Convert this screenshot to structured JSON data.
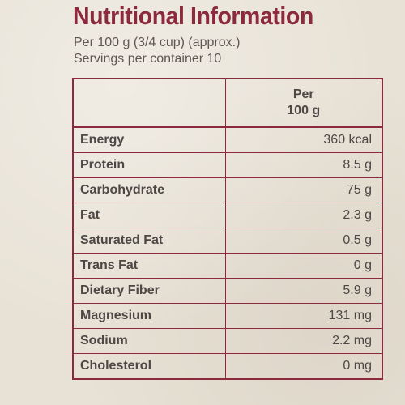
{
  "label": {
    "title": "Nutritional Information",
    "serving_size": "Per 100 g (3/4 cup) (approx.)",
    "servings_per_container": "Servings per container 10",
    "column_header_line1": "Per",
    "column_header_line2": "100 g",
    "rows": [
      {
        "name": "Energy",
        "value": "360 kcal"
      },
      {
        "name": "Protein",
        "value": "8.5 g"
      },
      {
        "name": "Carbohydrate",
        "value": "75 g"
      },
      {
        "name": "Fat",
        "value": "2.3 g"
      },
      {
        "name": "Saturated Fat",
        "value": "0.5 g"
      },
      {
        "name": "Trans Fat",
        "value": "0 g"
      },
      {
        "name": "Dietary Fiber",
        "value": "5.9 g"
      },
      {
        "name": "Magnesium",
        "value": "131 mg"
      },
      {
        "name": "Sodium",
        "value": "2.2 mg"
      },
      {
        "name": "Cholesterol",
        "value": "0 mg"
      }
    ],
    "colors": {
      "accent": "#8a2a3c",
      "text": "#4d4745",
      "paper": "#e8e2d6"
    }
  }
}
